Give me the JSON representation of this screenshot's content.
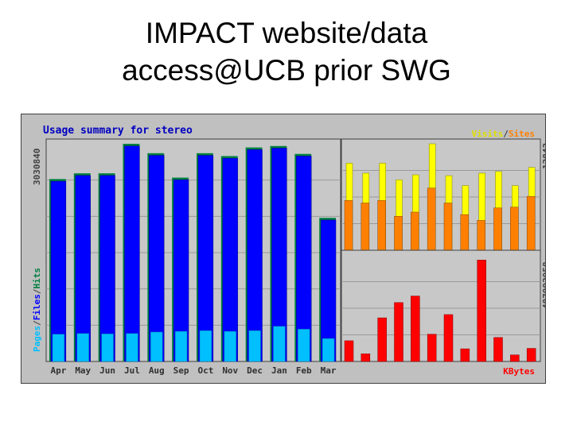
{
  "slide": {
    "title_line1": "IMPACT website/data",
    "title_line2": "access@UCB prior SWG"
  },
  "chart_data": [
    {
      "type": "bar",
      "title": "Usage summary for stereo",
      "categories": [
        "Apr",
        "May",
        "Jun",
        "Jul",
        "Aug",
        "Sep",
        "Oct",
        "Nov",
        "Dec",
        "Jan",
        "Feb",
        "Mar"
      ],
      "ylabel_parts": [
        "Pages",
        "/",
        "Files",
        "/",
        "Hits"
      ],
      "ymax_label": "3030840",
      "ylim": [
        0,
        3030840
      ],
      "series": [
        {
          "name": "Hits",
          "values": [
            2540000,
            2620000,
            2620000,
            3030840,
            2900000,
            2560000,
            2900000,
            2860000,
            2980000,
            3000000,
            2890000,
            2000000
          ]
        },
        {
          "name": "Files",
          "values": [
            2510000,
            2590000,
            2590000,
            3000000,
            2870000,
            2530000,
            2870000,
            2830000,
            2950000,
            2970000,
            2860000,
            1970000
          ]
        },
        {
          "name": "Pages",
          "values": [
            380000,
            390000,
            385000,
            390000,
            410000,
            420000,
            430000,
            420000,
            430000,
            490000,
            450000,
            320000
          ]
        }
      ]
    },
    {
      "type": "bar",
      "legend_parts": [
        "Visits",
        "/",
        "Sites"
      ],
      "ymax_label": "12843",
      "ylim": [
        0,
        12843
      ],
      "series": [
        {
          "name": "Visits",
          "values": [
            10500,
            9300,
            10500,
            8500,
            9100,
            12843,
            9000,
            7800,
            9300,
            9500,
            7800,
            10000
          ]
        },
        {
          "name": "Sites",
          "values": [
            6000,
            5700,
            6000,
            4100,
            4600,
            7500,
            5700,
            4300,
            3600,
            5100,
            5200,
            6500
          ]
        }
      ]
    },
    {
      "type": "bar",
      "legend_parts": [
        "KBytes"
      ],
      "ymax_label": "487992958",
      "ylim": [
        0,
        487992958
      ],
      "series": [
        {
          "name": "KBytes",
          "values": [
            95000000,
            35000000,
            200000000,
            270000000,
            300000000,
            125000000,
            215000000,
            58000000,
            465000000,
            110000000,
            30000000,
            60000000
          ]
        }
      ]
    }
  ],
  "colors": {
    "panel_bg": "#c0c0c0",
    "plot_bg": "#c8c8c8",
    "grid": "#9a9a9a",
    "text_navy": "#0000c0",
    "hits": "#008040",
    "files": "#0000ff",
    "pages": "#00bfff",
    "visits": "#ffff00",
    "sites": "#ff8000",
    "kbytes": "#ff0000"
  }
}
